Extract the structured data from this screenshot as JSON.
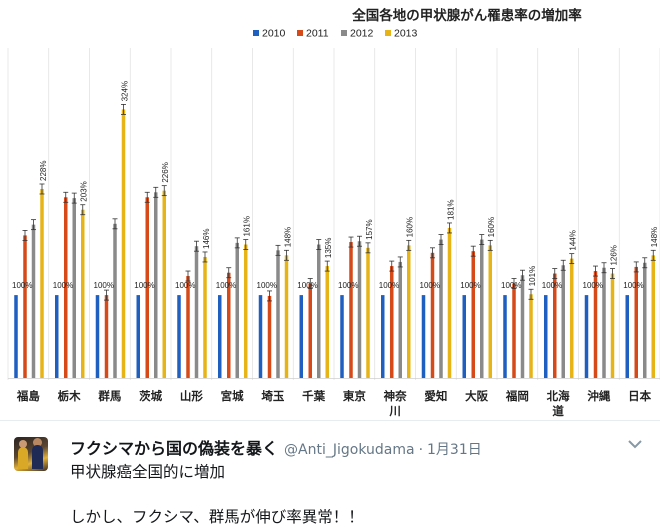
{
  "chart_data": {
    "type": "bar",
    "title": "全国各地の甲状腺がん罹患率の増加率",
    "legend_position": "top",
    "categories": [
      "福島",
      "栃木",
      "群馬",
      "茨城",
      "山形",
      "宮城",
      "埼玉",
      "千葉",
      "東京",
      "神奈川",
      "愛知",
      "大阪",
      "福岡",
      "北海道",
      "沖縄",
      "日本"
    ],
    "series": [
      {
        "name": "2010",
        "color": "#1f5fbf",
        "values": [
          100,
          100,
          100,
          100,
          100,
          100,
          100,
          100,
          100,
          100,
          100,
          100,
          100,
          100,
          100,
          100
        ]
      },
      {
        "name": "2011",
        "color": "#d64a1a",
        "values": [
          172,
          218,
          100,
          218,
          123,
          127,
          99,
          114,
          164,
          135,
          151,
          153,
          114,
          126,
          129,
          134
        ]
      },
      {
        "name": "2012",
        "color": "#8a8a8a",
        "values": [
          185,
          217,
          186,
          224,
          159,
          163,
          154,
          161,
          165,
          140,
          167,
          167,
          124,
          136,
          133,
          139
        ]
      },
      {
        "name": "2013",
        "color": "#e6b417",
        "values": [
          228,
          203,
          324,
          226,
          146,
          161,
          148,
          135,
          157,
          160,
          181,
          160,
          101,
          144,
          126,
          148
        ]
      }
    ],
    "data_labels": [
      [
        "100%",
        "100%",
        "100%",
        "100%",
        "100%",
        "100%",
        "100%",
        "100%",
        "100%",
        "100%",
        "100%",
        "100%",
        "100%",
        "100%",
        "100%",
        "100%"
      ],
      [
        "228%",
        "203%",
        "324%",
        "226%",
        "146%",
        "161%",
        "148%",
        "135%",
        "157%",
        "160%",
        "181%",
        "160%",
        "101%",
        "144%",
        "126%",
        "148%"
      ]
    ],
    "ylim": [
      0,
      345
    ],
    "grid": false
  },
  "tweet": {
    "name": "フクシマから国の偽装を暴く",
    "handle": "@Anti_Jigokudama",
    "separator": "·",
    "date": "1月31日",
    "lines": [
      "甲状腺癌全国的に増加",
      "しかし、フクシマ、群馬が伸び率異常！！"
    ]
  },
  "icons": {
    "avatar": "profile-photo",
    "caret": "chevron-down-icon"
  }
}
